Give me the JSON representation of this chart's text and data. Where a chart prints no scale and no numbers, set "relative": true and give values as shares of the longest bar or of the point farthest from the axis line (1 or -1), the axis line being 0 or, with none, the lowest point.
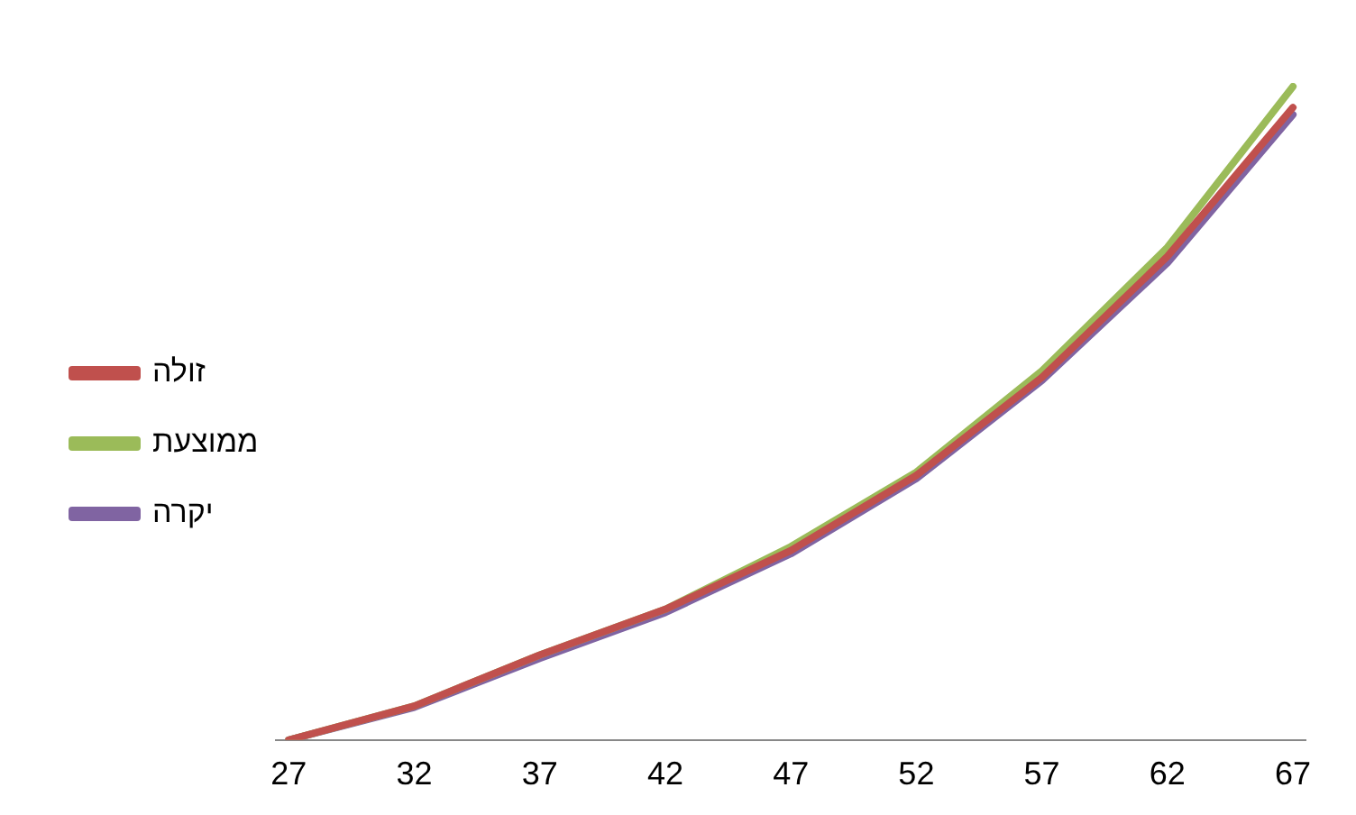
{
  "chart_data": {
    "type": "line",
    "relative": true,
    "x": [
      27,
      32,
      37,
      42,
      47,
      52,
      57,
      62,
      67
    ],
    "xlim": [
      26.5,
      67.5
    ],
    "xticks": [
      27,
      32,
      37,
      42,
      47,
      52,
      57,
      62,
      67
    ],
    "tick_labels": "x",
    "grid": false,
    "legend": "left",
    "marker": "none",
    "line_style": "solid",
    "series": [
      {
        "name": "זולה",
        "color": "#c0504d",
        "values": [
          0,
          0.052,
          0.13,
          0.2,
          0.29,
          0.405,
          0.555,
          0.74,
          0.968
        ]
      },
      {
        "name": "ממוצעת",
        "color": "#9bbb59",
        "values": [
          0,
          0.052,
          0.13,
          0.2,
          0.296,
          0.41,
          0.565,
          0.754,
          1
        ]
      },
      {
        "name": "יקרה",
        "color": "#8064a2",
        "values": [
          0,
          0.05,
          0.125,
          0.195,
          0.285,
          0.4,
          0.55,
          0.73,
          0.957
        ]
      }
    ]
  }
}
